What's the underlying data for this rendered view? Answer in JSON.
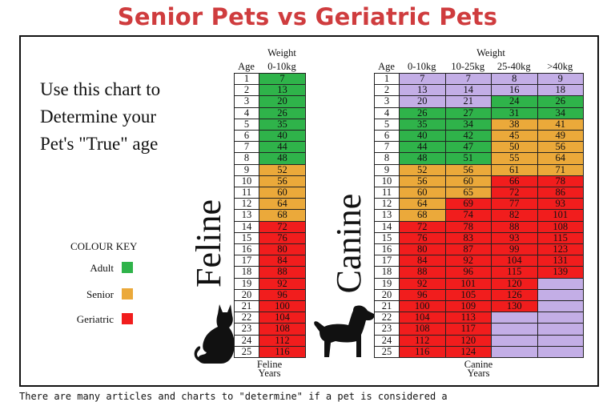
{
  "page_title": "Senior Pets vs Geriatric Pets",
  "intro_lines": [
    "Use this chart to",
    "Determine your",
    "Pet's \"True\" age"
  ],
  "colour_key": {
    "title": "COLOUR KEY",
    "items": [
      {
        "label": "Adult",
        "color": "#2fb34a"
      },
      {
        "label": "Senior",
        "color": "#eba93a"
      },
      {
        "label": "Geriatric",
        "color": "#f11d1d"
      }
    ]
  },
  "colors": {
    "adult": "#2fb34a",
    "senior": "#eba93a",
    "geriatric": "#f11d1d",
    "na": "#c3aee6",
    "title_red": "#cf3c3e"
  },
  "feline": {
    "side_label": "Feline",
    "weight_label": "Weight",
    "age_label": "Age",
    "columns": [
      "0-10kg"
    ],
    "footer_lines": [
      "Feline",
      "Years"
    ],
    "ages": [
      1,
      2,
      3,
      4,
      5,
      6,
      7,
      8,
      9,
      10,
      11,
      12,
      13,
      14,
      15,
      16,
      17,
      18,
      19,
      20,
      21,
      22,
      23,
      24,
      25
    ],
    "values": [
      [
        7
      ],
      [
        13
      ],
      [
        20
      ],
      [
        26
      ],
      [
        35
      ],
      [
        40
      ],
      [
        44
      ],
      [
        48
      ],
      [
        52
      ],
      [
        56
      ],
      [
        60
      ],
      [
        64
      ],
      [
        68
      ],
      [
        72
      ],
      [
        76
      ],
      [
        80
      ],
      [
        84
      ],
      [
        88
      ],
      [
        92
      ],
      [
        96
      ],
      [
        100
      ],
      [
        104
      ],
      [
        108
      ],
      [
        112
      ],
      [
        116
      ]
    ],
    "status": [
      [
        "adult"
      ],
      [
        "adult"
      ],
      [
        "adult"
      ],
      [
        "adult"
      ],
      [
        "adult"
      ],
      [
        "adult"
      ],
      [
        "adult"
      ],
      [
        "adult"
      ],
      [
        "senior"
      ],
      [
        "senior"
      ],
      [
        "senior"
      ],
      [
        "senior"
      ],
      [
        "senior"
      ],
      [
        "geriatric"
      ],
      [
        "geriatric"
      ],
      [
        "geriatric"
      ],
      [
        "geriatric"
      ],
      [
        "geriatric"
      ],
      [
        "geriatric"
      ],
      [
        "geriatric"
      ],
      [
        "geriatric"
      ],
      [
        "geriatric"
      ],
      [
        "geriatric"
      ],
      [
        "geriatric"
      ],
      [
        "geriatric"
      ]
    ]
  },
  "canine": {
    "side_label": "Canine",
    "weight_label": "Weight",
    "age_label": "Age",
    "columns": [
      "0-10kg",
      "10-25kg",
      "25-40kg",
      ">40kg"
    ],
    "footer_lines": [
      "Canine",
      "Years"
    ],
    "ages": [
      1,
      2,
      3,
      4,
      5,
      6,
      7,
      8,
      9,
      10,
      11,
      12,
      13,
      14,
      15,
      16,
      17,
      18,
      19,
      20,
      21,
      22,
      23,
      24,
      25
    ],
    "values": [
      [
        7,
        7,
        8,
        9
      ],
      [
        13,
        14,
        16,
        18
      ],
      [
        20,
        21,
        24,
        26
      ],
      [
        26,
        27,
        31,
        34
      ],
      [
        35,
        34,
        38,
        41
      ],
      [
        40,
        42,
        45,
        49
      ],
      [
        44,
        47,
        50,
        56
      ],
      [
        48,
        51,
        55,
        64
      ],
      [
        52,
        56,
        61,
        71
      ],
      [
        56,
        60,
        66,
        78
      ],
      [
        60,
        65,
        72,
        86
      ],
      [
        64,
        69,
        77,
        93
      ],
      [
        68,
        74,
        82,
        101
      ],
      [
        72,
        78,
        88,
        108
      ],
      [
        76,
        83,
        93,
        115
      ],
      [
        80,
        87,
        99,
        123
      ],
      [
        84,
        92,
        104,
        131
      ],
      [
        88,
        96,
        115,
        139
      ],
      [
        92,
        101,
        120,
        null
      ],
      [
        96,
        105,
        126,
        null
      ],
      [
        100,
        109,
        130,
        null
      ],
      [
        104,
        113,
        null,
        null
      ],
      [
        108,
        117,
        null,
        null
      ],
      [
        112,
        120,
        null,
        null
      ],
      [
        116,
        124,
        null,
        null
      ]
    ],
    "status": [
      [
        "na",
        "na",
        "na",
        "na"
      ],
      [
        "na",
        "na",
        "na",
        "na"
      ],
      [
        "na",
        "na",
        "adult",
        "adult"
      ],
      [
        "adult",
        "adult",
        "adult",
        "adult"
      ],
      [
        "adult",
        "adult",
        "senior",
        "senior"
      ],
      [
        "adult",
        "adult",
        "senior",
        "senior"
      ],
      [
        "adult",
        "adult",
        "senior",
        "senior"
      ],
      [
        "adult",
        "adult",
        "senior",
        "senior"
      ],
      [
        "senior",
        "senior",
        "senior",
        "senior"
      ],
      [
        "senior",
        "senior",
        "geriatric",
        "geriatric"
      ],
      [
        "senior",
        "senior",
        "geriatric",
        "geriatric"
      ],
      [
        "senior",
        "geriatric",
        "geriatric",
        "geriatric"
      ],
      [
        "senior",
        "geriatric",
        "geriatric",
        "geriatric"
      ],
      [
        "geriatric",
        "geriatric",
        "geriatric",
        "geriatric"
      ],
      [
        "geriatric",
        "geriatric",
        "geriatric",
        "geriatric"
      ],
      [
        "geriatric",
        "geriatric",
        "geriatric",
        "geriatric"
      ],
      [
        "geriatric",
        "geriatric",
        "geriatric",
        "geriatric"
      ],
      [
        "geriatric",
        "geriatric",
        "geriatric",
        "geriatric"
      ],
      [
        "geriatric",
        "geriatric",
        "geriatric",
        "na"
      ],
      [
        "geriatric",
        "geriatric",
        "geriatric",
        "na"
      ],
      [
        "geriatric",
        "geriatric",
        "geriatric",
        "na"
      ],
      [
        "geriatric",
        "geriatric",
        "na",
        "na"
      ],
      [
        "geriatric",
        "geriatric",
        "na",
        "na"
      ],
      [
        "geriatric",
        "geriatric",
        "na",
        "na"
      ],
      [
        "geriatric",
        "geriatric",
        "na",
        "na"
      ]
    ]
  },
  "bottom_text": "There are many articles and charts to \"determine\" if a pet is considered a"
}
